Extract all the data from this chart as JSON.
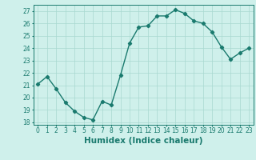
{
  "x": [
    0,
    1,
    2,
    3,
    4,
    5,
    6,
    7,
    8,
    9,
    10,
    11,
    12,
    13,
    14,
    15,
    16,
    17,
    18,
    19,
    20,
    21,
    22,
    23
  ],
  "y": [
    21.1,
    21.7,
    20.7,
    19.6,
    18.9,
    18.4,
    18.2,
    19.7,
    19.4,
    21.8,
    24.4,
    25.7,
    25.8,
    26.6,
    26.6,
    27.1,
    26.8,
    26.2,
    26.0,
    25.3,
    24.1,
    23.1,
    23.6,
    24.0
  ],
  "line_color": "#1a7a6e",
  "marker": "D",
  "marker_size": 2.2,
  "bg_color": "#cff0eb",
  "grid_color": "#a8d8d0",
  "xlabel": "Humidex (Indice chaleur)",
  "xlim": [
    -0.5,
    23.5
  ],
  "ylim": [
    17.8,
    27.5
  ],
  "yticks": [
    18,
    19,
    20,
    21,
    22,
    23,
    24,
    25,
    26,
    27
  ],
  "xticks": [
    0,
    1,
    2,
    3,
    4,
    5,
    6,
    7,
    8,
    9,
    10,
    11,
    12,
    13,
    14,
    15,
    16,
    17,
    18,
    19,
    20,
    21,
    22,
    23
  ],
  "tick_fontsize": 5.5,
  "xlabel_fontsize": 7.5,
  "line_width": 1.0
}
